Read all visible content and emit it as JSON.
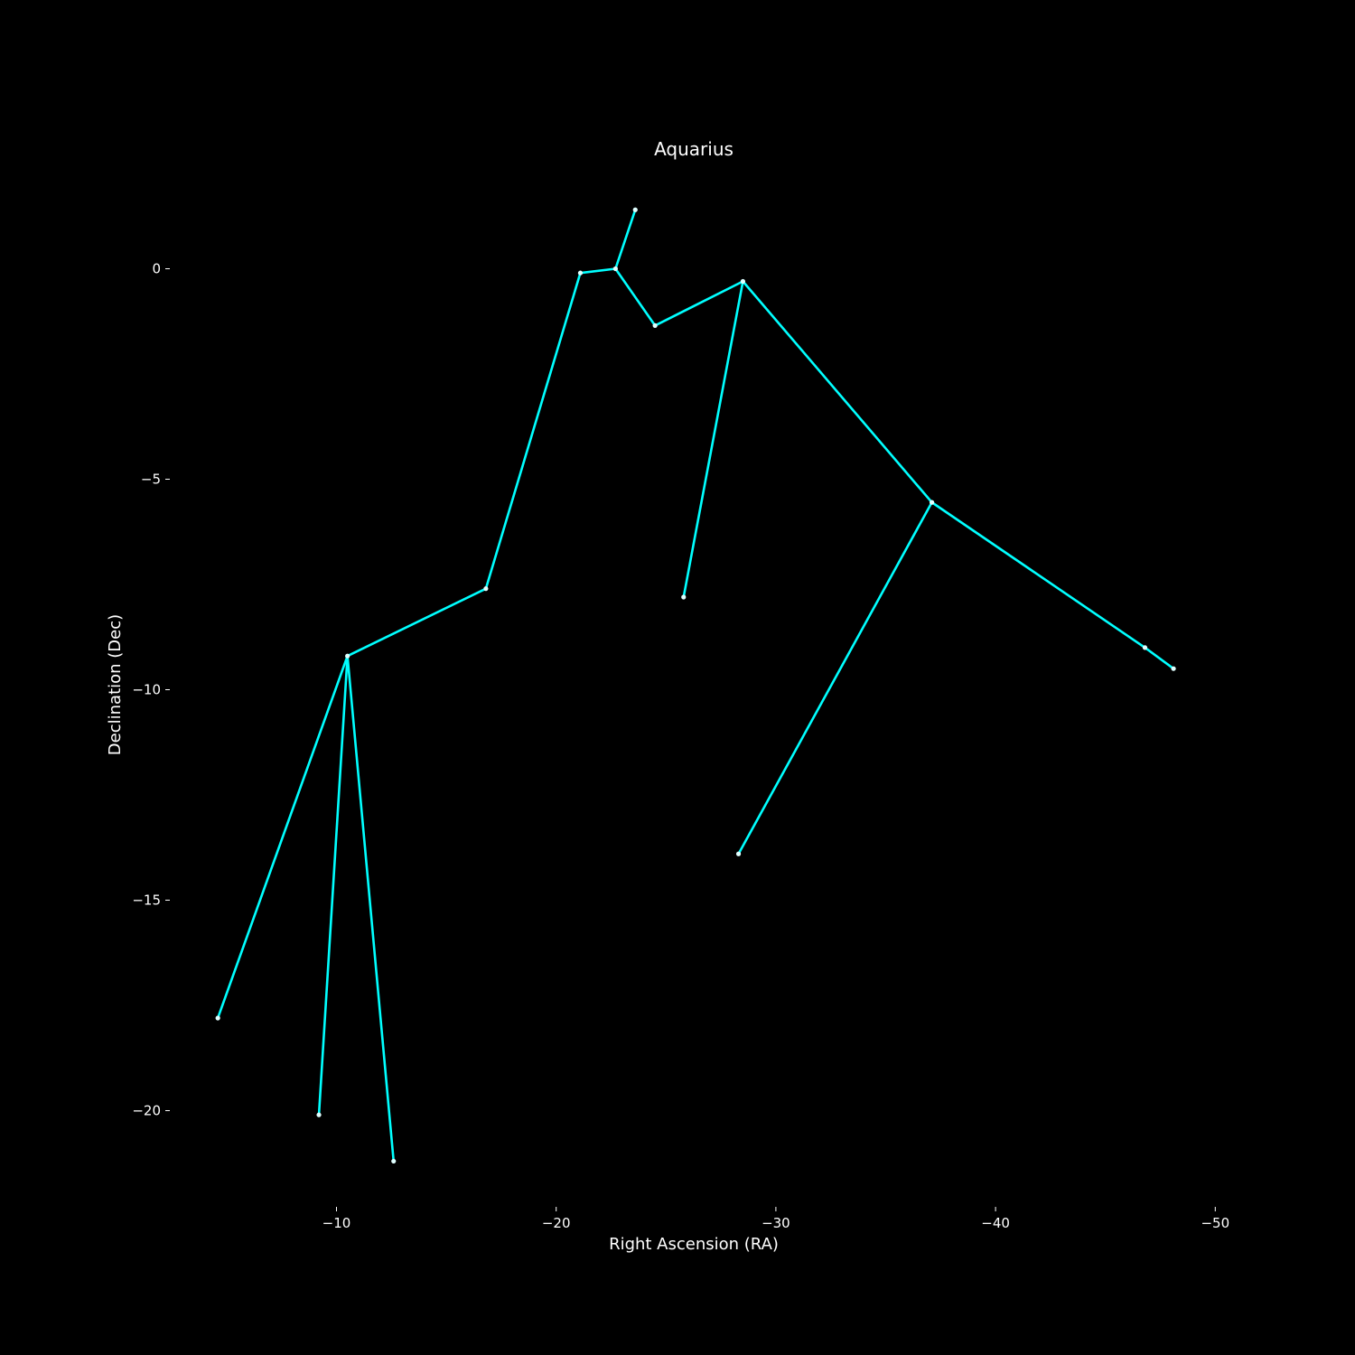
{
  "chart_data": {
    "type": "line",
    "title": "Aquarius",
    "xlabel": "Right Ascension (RA)",
    "ylabel": "Declination (Dec)",
    "x_inverted": true,
    "xlim": [
      -4.5,
      -54.3
    ],
    "ylim": [
      -22.3,
      2.8
    ],
    "grid": false,
    "x_ticks": [
      {
        "value": -10,
        "label": "−10"
      },
      {
        "value": -20,
        "label": "−20"
      },
      {
        "value": -30,
        "label": "−30"
      },
      {
        "value": -40,
        "label": "−40"
      },
      {
        "value": -50,
        "label": "−50"
      }
    ],
    "y_ticks": [
      {
        "value": 0,
        "label": "0"
      },
      {
        "value": -5,
        "label": "−5"
      },
      {
        "value": -10,
        "label": "−10"
      },
      {
        "value": -15,
        "label": "−15"
      },
      {
        "value": -20,
        "label": "−20"
      }
    ],
    "stars": [
      {
        "id": "s1",
        "x": -23.6,
        "y": 1.4
      },
      {
        "id": "s2",
        "x": -22.7,
        "y": 0.0
      },
      {
        "id": "s3",
        "x": -21.1,
        "y": -0.1
      },
      {
        "id": "s4",
        "x": -24.5,
        "y": -1.35
      },
      {
        "id": "s5",
        "x": -28.5,
        "y": -0.3
      },
      {
        "id": "s6",
        "x": -16.8,
        "y": -7.6
      },
      {
        "id": "s7",
        "x": -10.5,
        "y": -9.2
      },
      {
        "id": "s8",
        "x": -4.6,
        "y": -17.8
      },
      {
        "id": "s9",
        "x": -9.2,
        "y": -20.1
      },
      {
        "id": "s10",
        "x": -12.6,
        "y": -21.2
      },
      {
        "id": "s11",
        "x": -25.8,
        "y": -7.8
      },
      {
        "id": "s12",
        "x": -37.1,
        "y": -5.55
      },
      {
        "id": "s13",
        "x": -28.3,
        "y": -13.9
      },
      {
        "id": "s14",
        "x": -46.8,
        "y": -9.0
      },
      {
        "id": "s15",
        "x": -48.1,
        "y": -9.5
      }
    ],
    "connections": [
      [
        "s1",
        "s2"
      ],
      [
        "s2",
        "s3"
      ],
      [
        "s2",
        "s4"
      ],
      [
        "s4",
        "s5"
      ],
      [
        "s3",
        "s6"
      ],
      [
        "s6",
        "s7"
      ],
      [
        "s7",
        "s8"
      ],
      [
        "s7",
        "s9"
      ],
      [
        "s7",
        "s10"
      ],
      [
        "s5",
        "s11"
      ],
      [
        "s5",
        "s12"
      ],
      [
        "s12",
        "s13"
      ],
      [
        "s12",
        "s14"
      ],
      [
        "s14",
        "s15"
      ]
    ],
    "colors": {
      "background": "#000000",
      "line": "#00ffff",
      "star": "#e0ffff",
      "text": "#ffffff"
    }
  }
}
